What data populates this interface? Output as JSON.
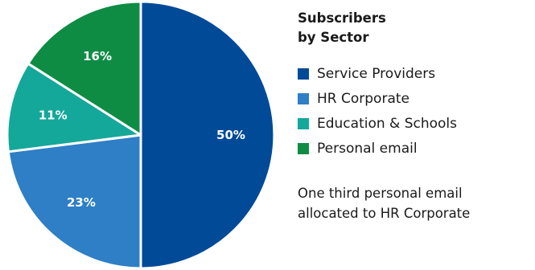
{
  "chart_data": {
    "type": "pie",
    "title": [
      "Subscribers",
      "by Sector"
    ],
    "slices": [
      {
        "label": "Service Providers",
        "value": 50,
        "value_label": "50%",
        "color": "#004a98"
      },
      {
        "label": "HR Corporate",
        "value": 23,
        "value_label": "23%",
        "color": "#2e7fc5"
      },
      {
        "label": "Education & Schools",
        "value": 11,
        "value_label": "11%",
        "color": "#14a89a"
      },
      {
        "label": "Personal email",
        "value": 16,
        "value_label": "16%",
        "color": "#0f8c44"
      }
    ],
    "legend_position": "right",
    "annotation": [
      "One third personal email",
      "allocated to HR Corporate"
    ]
  }
}
